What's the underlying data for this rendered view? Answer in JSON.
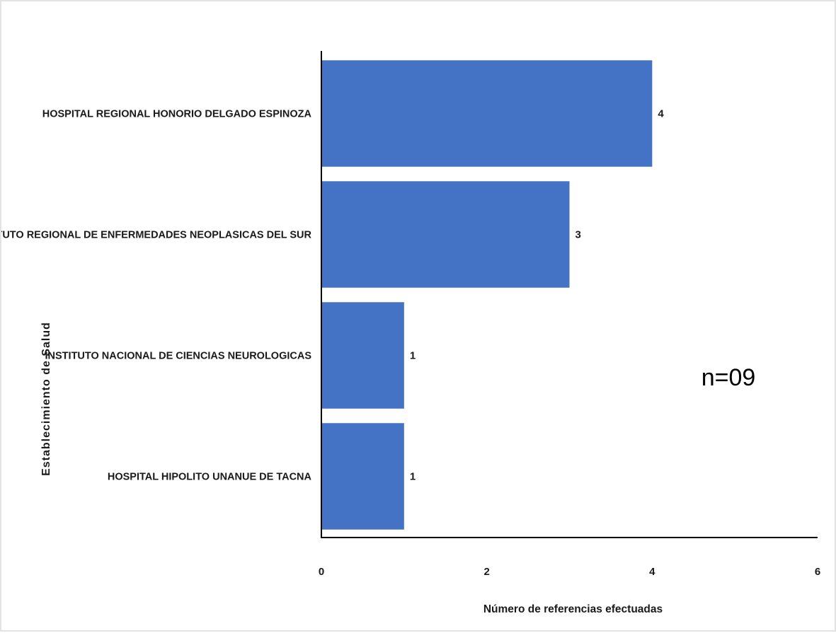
{
  "chart_data": {
    "type": "bar",
    "orientation": "horizontal",
    "categories": [
      "HOSPITAL REGIONAL HONORIO DELGADO ESPINOZA",
      "INSTITUTO REGIONAL DE ENFERMEDADES NEOPLASICAS DEL SUR",
      "INSTITUTO NACIONAL DE CIENCIAS NEUROLOGICAS",
      "HOSPITAL HIPOLITO UNANUE DE TACNA"
    ],
    "values": [
      4,
      3,
      1,
      1
    ],
    "data_labels": [
      "4",
      "3",
      "1",
      "1"
    ],
    "xlabel": "Número de referencias efectuadas",
    "ylabel": "Establecimiento de Salud",
    "xlim": [
      0,
      6
    ],
    "xticks": [
      0,
      2,
      4,
      6
    ],
    "xtick_labels": [
      "0",
      "2",
      "4",
      "6"
    ],
    "annotation": "n=09",
    "bar_color": "#4472c4",
    "grid": false,
    "legend": "none"
  }
}
